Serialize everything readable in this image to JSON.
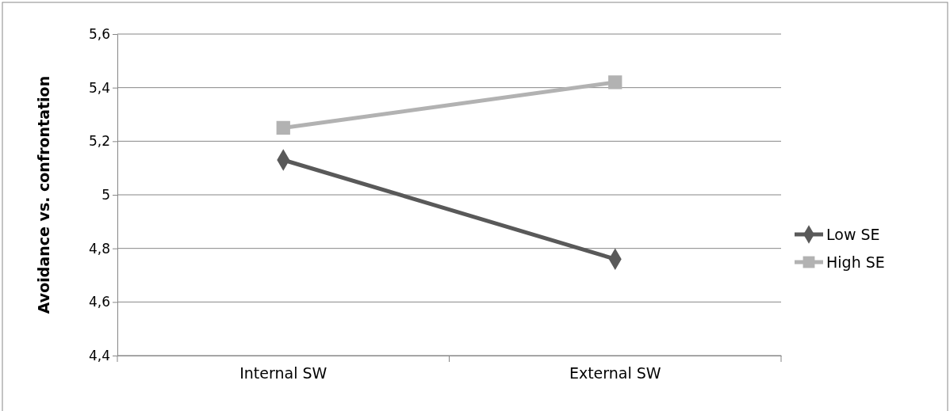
{
  "chart_data": {
    "type": "line",
    "ylabel": "Avoidance vs. confrontation",
    "categories": [
      "Internal SW",
      "External SW"
    ],
    "series": [
      {
        "name": "Low SE",
        "color": "#595959",
        "values": [
          5.13,
          4.76
        ],
        "marker": "diamond"
      },
      {
        "name": "High SE",
        "color": "#b2b2b2",
        "values": [
          5.25,
          5.42
        ],
        "marker": "square"
      }
    ],
    "ylim": [
      4.4,
      5.6
    ],
    "yticks": [
      {
        "value": 4.4,
        "label": "4,4"
      },
      {
        "value": 4.6,
        "label": "4,6"
      },
      {
        "value": 4.8,
        "label": "4,8"
      },
      {
        "value": 5,
        "label": "5"
      },
      {
        "value": 5.2,
        "label": "5,2"
      },
      {
        "value": 5.4,
        "label": "5,4"
      },
      {
        "value": 5.6,
        "label": "5,6"
      }
    ],
    "grid": "y",
    "legend": "right"
  }
}
